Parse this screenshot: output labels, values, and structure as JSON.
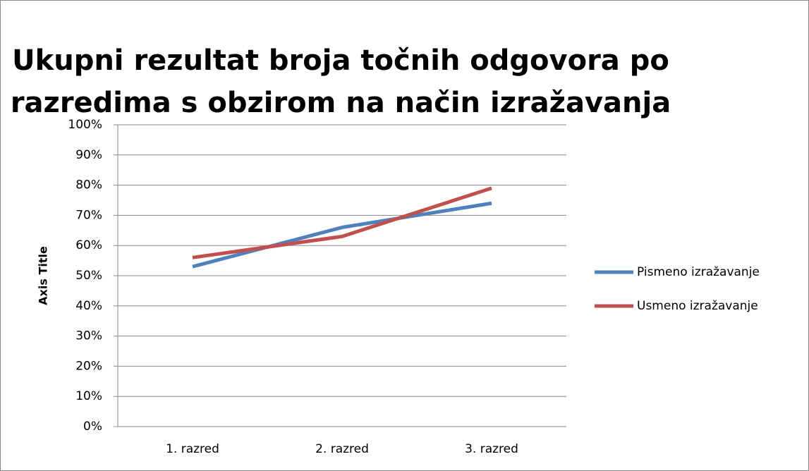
{
  "chart_data": {
    "type": "line",
    "title": [
      "Ukupni rezultat broja točnih odgovora po",
      "razredima s obzirom na način izražavanja"
    ],
    "y_label": "Axis Title",
    "categories": [
      "1. razred",
      "2. razred",
      "3. razred"
    ],
    "series": [
      {
        "name": "Pismeno izražavanje",
        "color": "#4f81bd",
        "values": [
          53,
          66,
          74
        ]
      },
      {
        "name": "Usmeno izražavanje",
        "color": "#c0504d",
        "values": [
          56,
          63,
          79
        ]
      }
    ],
    "ylim": [
      0,
      100
    ],
    "yticks": [
      {
        "value": 0,
        "label": "0%"
      },
      {
        "value": 10,
        "label": "10%"
      },
      {
        "value": 20,
        "label": "20%"
      },
      {
        "value": 30,
        "label": "30%"
      },
      {
        "value": 40,
        "label": "40%"
      },
      {
        "value": 50,
        "label": "50%"
      },
      {
        "value": 60,
        "label": "60%"
      },
      {
        "value": 70,
        "label": "70%"
      },
      {
        "value": 80,
        "label": "80%"
      },
      {
        "value": 90,
        "label": "90%"
      },
      {
        "value": 100,
        "label": "100%"
      }
    ],
    "grid": true,
    "legend": "right"
  }
}
